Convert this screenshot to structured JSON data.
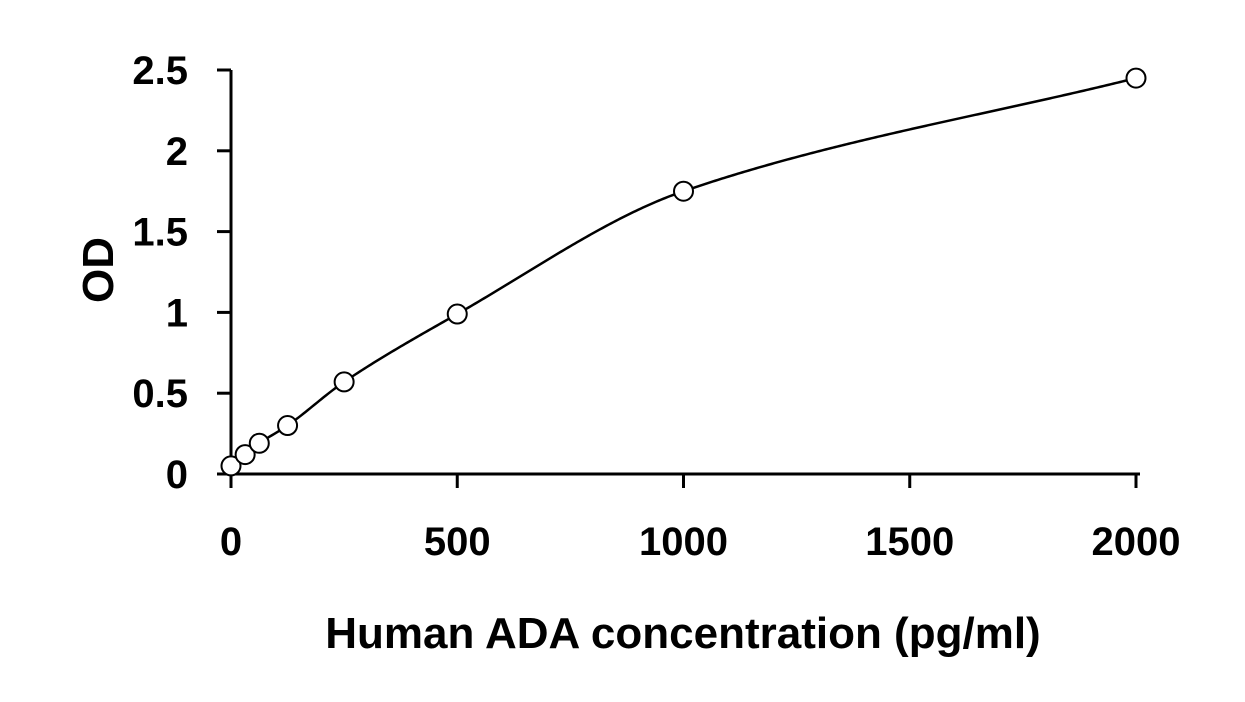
{
  "chart_data": {
    "type": "scatter",
    "title": "",
    "xlabel": "Human ADA concentration (pg/ml)",
    "ylabel": "OD",
    "xlim": [
      0,
      2000
    ],
    "ylim": [
      0,
      2.5
    ],
    "x_ticks": [
      0,
      500,
      1000,
      1500,
      2000
    ],
    "y_ticks": [
      0,
      0.5,
      1,
      1.5,
      2,
      2.5
    ],
    "x_tick_labels": [
      "0",
      "500",
      "1000",
      "1500",
      "2000"
    ],
    "y_tick_labels": [
      "0",
      "0.5",
      "1",
      "1.5",
      "2",
      "2.5"
    ],
    "grid": false,
    "legend": "none",
    "marker": "open-circle",
    "trendline": "smooth-fit",
    "series": [
      {
        "x": [
          0,
          31.25,
          62.5,
          125,
          250,
          500,
          1000,
          2000
        ],
        "y": [
          0.05,
          0.12,
          0.19,
          0.3,
          0.57,
          0.99,
          1.75,
          2.45
        ]
      }
    ],
    "colors": {
      "marker": "#000000",
      "line": "#000000",
      "axis": "#000000"
    }
  }
}
